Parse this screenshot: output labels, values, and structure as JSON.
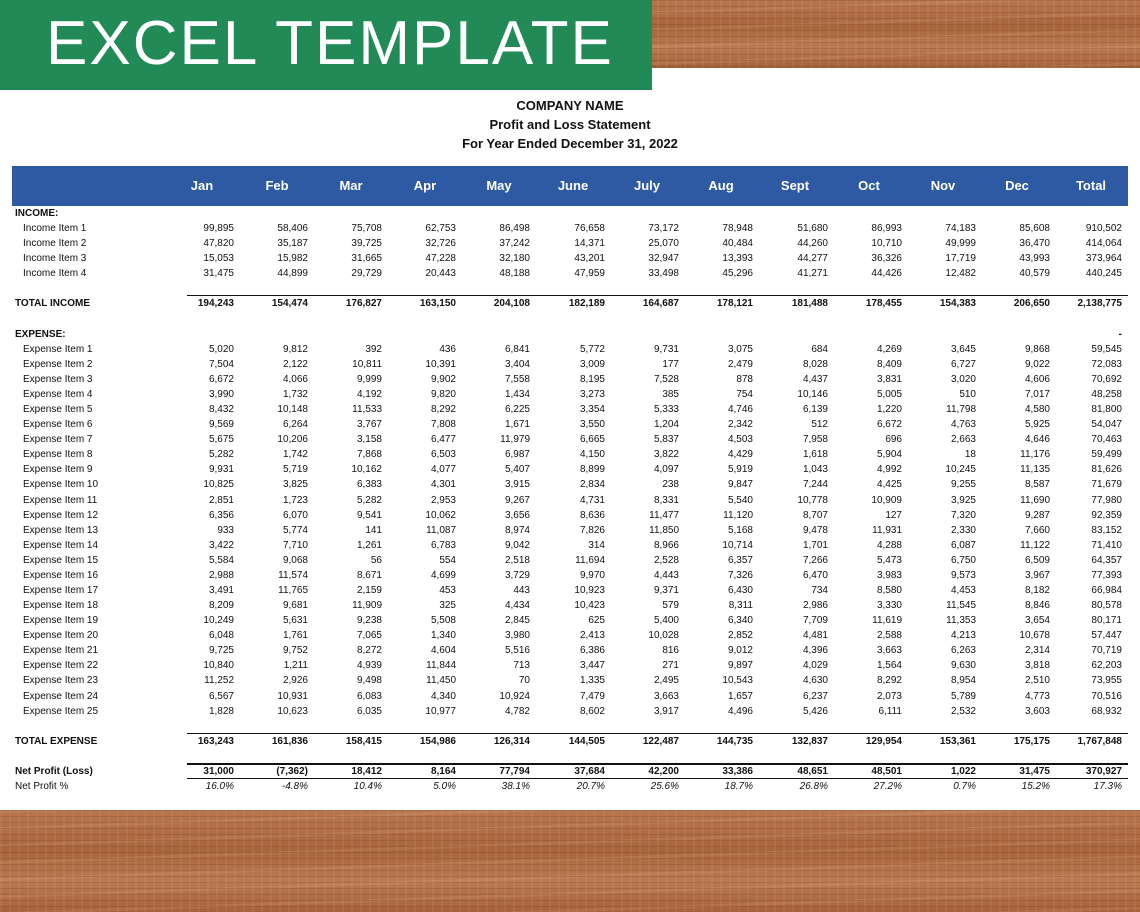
{
  "banner": {
    "title": "EXCEL TEMPLATE"
  },
  "report": {
    "company": "COMPANY NAME",
    "title": "Profit and Loss Statement",
    "period": "For Year Ended December 31, 2022"
  },
  "columns": [
    "Jan",
    "Feb",
    "Mar",
    "Apr",
    "May",
    "June",
    "July",
    "Aug",
    "Sept",
    "Oct",
    "Nov",
    "Dec",
    "Total"
  ],
  "income": {
    "header": "INCOME:",
    "items": [
      {
        "label": "Income Item 1",
        "values": [
          "99,895",
          "58,406",
          "75,708",
          "62,753",
          "86,498",
          "76,658",
          "73,172",
          "78,948",
          "51,680",
          "86,993",
          "74,183",
          "85,608",
          "910,502"
        ]
      },
      {
        "label": "Income Item 2",
        "values": [
          "47,820",
          "35,187",
          "39,725",
          "32,726",
          "37,242",
          "14,371",
          "25,070",
          "40,484",
          "44,260",
          "10,710",
          "49,999",
          "36,470",
          "414,064"
        ]
      },
      {
        "label": "Income Item 3",
        "values": [
          "15,053",
          "15,982",
          "31,665",
          "47,228",
          "32,180",
          "43,201",
          "32,947",
          "13,393",
          "44,277",
          "36,326",
          "17,719",
          "43,993",
          "373,964"
        ]
      },
      {
        "label": "Income Item 4",
        "values": [
          "31,475",
          "44,899",
          "29,729",
          "20,443",
          "48,188",
          "47,959",
          "33,498",
          "45,296",
          "41,271",
          "44,426",
          "12,482",
          "40,579",
          "440,245"
        ]
      }
    ],
    "total": {
      "label": "TOTAL INCOME",
      "values": [
        "194,243",
        "154,474",
        "176,827",
        "163,150",
        "204,108",
        "182,189",
        "164,687",
        "178,121",
        "181,488",
        "178,455",
        "154,383",
        "206,650",
        "2,138,775"
      ]
    }
  },
  "expense": {
    "header": "EXPENSE:",
    "header_total": "-",
    "items": [
      {
        "label": "Expense Item 1",
        "values": [
          "5,020",
          "9,812",
          "392",
          "436",
          "6,841",
          "5,772",
          "9,731",
          "3,075",
          "684",
          "4,269",
          "3,645",
          "9,868",
          "59,545"
        ]
      },
      {
        "label": "Expense Item 2",
        "values": [
          "7,504",
          "2,122",
          "10,811",
          "10,391",
          "3,404",
          "3,009",
          "177",
          "2,479",
          "8,028",
          "8,409",
          "6,727",
          "9,022",
          "72,083"
        ]
      },
      {
        "label": "Expense Item 3",
        "values": [
          "6,672",
          "4,066",
          "9,999",
          "9,902",
          "7,558",
          "8,195",
          "7,528",
          "878",
          "4,437",
          "3,831",
          "3,020",
          "4,606",
          "70,692"
        ]
      },
      {
        "label": "Expense Item 4",
        "values": [
          "3,990",
          "1,732",
          "4,192",
          "9,820",
          "1,434",
          "3,273",
          "385",
          "754",
          "10,146",
          "5,005",
          "510",
          "7,017",
          "48,258"
        ]
      },
      {
        "label": "Expense Item 5",
        "values": [
          "8,432",
          "10,148",
          "11,533",
          "8,292",
          "6,225",
          "3,354",
          "5,333",
          "4,746",
          "6,139",
          "1,220",
          "11,798",
          "4,580",
          "81,800"
        ]
      },
      {
        "label": "Expense Item 6",
        "values": [
          "9,569",
          "6,264",
          "3,767",
          "7,808",
          "1,671",
          "3,550",
          "1,204",
          "2,342",
          "512",
          "6,672",
          "4,763",
          "5,925",
          "54,047"
        ]
      },
      {
        "label": "Expense Item 7",
        "values": [
          "5,675",
          "10,206",
          "3,158",
          "6,477",
          "11,979",
          "6,665",
          "5,837",
          "4,503",
          "7,958",
          "696",
          "2,663",
          "4,646",
          "70,463"
        ]
      },
      {
        "label": "Expense Item 8",
        "values": [
          "5,282",
          "1,742",
          "7,868",
          "6,503",
          "6,987",
          "4,150",
          "3,822",
          "4,429",
          "1,618",
          "5,904",
          "18",
          "11,176",
          "59,499"
        ]
      },
      {
        "label": "Expense Item 9",
        "values": [
          "9,931",
          "5,719",
          "10,162",
          "4,077",
          "5,407",
          "8,899",
          "4,097",
          "5,919",
          "1,043",
          "4,992",
          "10,245",
          "11,135",
          "81,626"
        ]
      },
      {
        "label": "Expense Item 10",
        "values": [
          "10,825",
          "3,825",
          "6,383",
          "4,301",
          "3,915",
          "2,834",
          "238",
          "9,847",
          "7,244",
          "4,425",
          "9,255",
          "8,587",
          "71,679"
        ]
      },
      {
        "label": "Expense Item 11",
        "values": [
          "2,851",
          "1,723",
          "5,282",
          "2,953",
          "9,267",
          "4,731",
          "8,331",
          "5,540",
          "10,778",
          "10,909",
          "3,925",
          "11,690",
          "77,980"
        ]
      },
      {
        "label": "Expense Item 12",
        "values": [
          "6,356",
          "6,070",
          "9,541",
          "10,062",
          "3,656",
          "8,636",
          "11,477",
          "11,120",
          "8,707",
          "127",
          "7,320",
          "9,287",
          "92,359"
        ]
      },
      {
        "label": "Expense Item 13",
        "values": [
          "933",
          "5,774",
          "141",
          "11,087",
          "8,974",
          "7,826",
          "11,850",
          "5,168",
          "9,478",
          "11,931",
          "2,330",
          "7,660",
          "83,152"
        ]
      },
      {
        "label": "Expense Item 14",
        "values": [
          "3,422",
          "7,710",
          "1,261",
          "6,783",
          "9,042",
          "314",
          "8,966",
          "10,714",
          "1,701",
          "4,288",
          "6,087",
          "11,122",
          "71,410"
        ]
      },
      {
        "label": "Expense Item 15",
        "values": [
          "5,584",
          "9,068",
          "56",
          "554",
          "2,518",
          "11,694",
          "2,528",
          "6,357",
          "7,266",
          "5,473",
          "6,750",
          "6,509",
          "64,357"
        ]
      },
      {
        "label": "Expense Item 16",
        "values": [
          "2,988",
          "11,574",
          "8,671",
          "4,699",
          "3,729",
          "9,970",
          "4,443",
          "7,326",
          "6,470",
          "3,983",
          "9,573",
          "3,967",
          "77,393"
        ]
      },
      {
        "label": "Expense Item 17",
        "values": [
          "3,491",
          "11,765",
          "2,159",
          "453",
          "443",
          "10,923",
          "9,371",
          "6,430",
          "734",
          "8,580",
          "4,453",
          "8,182",
          "66,984"
        ]
      },
      {
        "label": "Expense Item 18",
        "values": [
          "8,209",
          "9,681",
          "11,909",
          "325",
          "4,434",
          "10,423",
          "579",
          "8,311",
          "2,986",
          "3,330",
          "11,545",
          "8,846",
          "80,578"
        ]
      },
      {
        "label": "Expense Item 19",
        "values": [
          "10,249",
          "5,631",
          "9,238",
          "5,508",
          "2,845",
          "625",
          "5,400",
          "6,340",
          "7,709",
          "11,619",
          "11,353",
          "3,654",
          "80,171"
        ]
      },
      {
        "label": "Expense Item 20",
        "values": [
          "6,048",
          "1,761",
          "7,065",
          "1,340",
          "3,980",
          "2,413",
          "10,028",
          "2,852",
          "4,481",
          "2,588",
          "4,213",
          "10,678",
          "57,447"
        ]
      },
      {
        "label": "Expense Item 21",
        "values": [
          "9,725",
          "9,752",
          "8,272",
          "4,604",
          "5,516",
          "6,386",
          "816",
          "9,012",
          "4,396",
          "3,663",
          "6,263",
          "2,314",
          "70,719"
        ]
      },
      {
        "label": "Expense Item 22",
        "values": [
          "10,840",
          "1,211",
          "4,939",
          "11,844",
          "713",
          "3,447",
          "271",
          "9,897",
          "4,029",
          "1,564",
          "9,630",
          "3,818",
          "62,203"
        ]
      },
      {
        "label": "Expense Item 23",
        "values": [
          "11,252",
          "2,926",
          "9,498",
          "11,450",
          "70",
          "1,335",
          "2,495",
          "10,543",
          "4,630",
          "8,292",
          "8,954",
          "2,510",
          "73,955"
        ]
      },
      {
        "label": "Expense Item 24",
        "values": [
          "6,567",
          "10,931",
          "6,083",
          "4,340",
          "10,924",
          "7,479",
          "3,663",
          "1,657",
          "6,237",
          "2,073",
          "5,789",
          "4,773",
          "70,516"
        ]
      },
      {
        "label": "Expense Item 25",
        "values": [
          "1,828",
          "10,623",
          "6,035",
          "10,977",
          "4,782",
          "8,602",
          "3,917",
          "4,496",
          "5,426",
          "6,111",
          "2,532",
          "3,603",
          "68,932"
        ]
      }
    ],
    "total": {
      "label": "TOTAL EXPENSE",
      "values": [
        "163,243",
        "161,836",
        "158,415",
        "154,986",
        "126,314",
        "144,505",
        "122,487",
        "144,735",
        "132,837",
        "129,954",
        "153,361",
        "175,175",
        "1,767,848"
      ]
    }
  },
  "net_profit": {
    "label": "Net Profit (Loss)",
    "values": [
      "31,000",
      "(7,362)",
      "18,412",
      "8,164",
      "77,794",
      "37,684",
      "42,200",
      "33,386",
      "48,651",
      "48,501",
      "1,022",
      "31,475",
      "370,927"
    ]
  },
  "net_profit_pct": {
    "label": "Net Profit %",
    "values": [
      "16.0%",
      "-4.8%",
      "10.4%",
      "5.0%",
      "38.1%",
      "20.7%",
      "25.6%",
      "18.7%",
      "26.8%",
      "27.2%",
      "0.7%",
      "15.2%",
      "17.3%"
    ]
  }
}
